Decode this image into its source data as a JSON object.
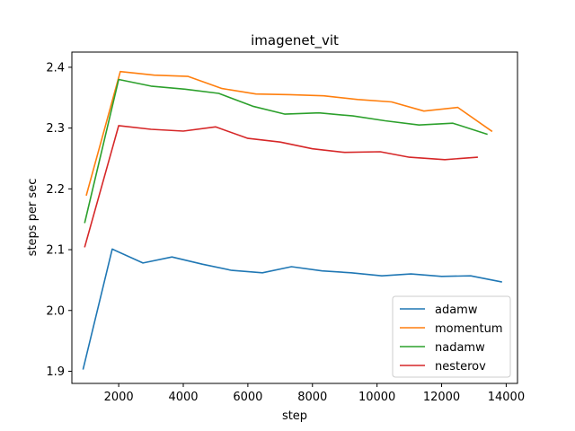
{
  "chart_data": {
    "type": "line",
    "title": "imagenet_vit",
    "xlabel": "step",
    "ylabel": "steps per sec",
    "xlim": [
      550,
      14350
    ],
    "ylim": [
      1.88,
      2.425
    ],
    "xticks": [
      2000,
      4000,
      6000,
      8000,
      10000,
      12000,
      14000
    ],
    "yticks": [
      1.9,
      2.0,
      2.1,
      2.2,
      2.3,
      2.4
    ],
    "xtick_labels": [
      "2000",
      "4000",
      "6000",
      "8000",
      "10000",
      "12000",
      "14000"
    ],
    "ytick_labels": [
      "1.9",
      "2.0",
      "2.1",
      "2.2",
      "2.3",
      "2.4"
    ],
    "grid": false,
    "legend_position": "lower-right",
    "series": [
      {
        "name": "adamw",
        "color": "#1f77b4",
        "x": [
          900,
          1800,
          2750,
          3650,
          4600,
          5500,
          6450,
          7350,
          8300,
          9200,
          10150,
          11050,
          12000,
          12900,
          13850
        ],
        "y": [
          1.904,
          2.101,
          2.078,
          2.088,
          2.076,
          2.066,
          2.062,
          2.072,
          2.065,
          2.062,
          2.057,
          2.06,
          2.056,
          2.057,
          2.047
        ]
      },
      {
        "name": "momentum",
        "color": "#ff7f0e",
        "x": [
          1000,
          2050,
          3100,
          4150,
          5200,
          6250,
          7300,
          8350,
          9400,
          10450,
          11450,
          12500,
          13550
        ],
        "y": [
          2.19,
          2.393,
          2.387,
          2.385,
          2.365,
          2.356,
          2.355,
          2.353,
          2.347,
          2.343,
          2.328,
          2.334,
          2.295
        ]
      },
      {
        "name": "nadamw",
        "color": "#2ca02c",
        "x": [
          950,
          2000,
          3000,
          4050,
          5100,
          6150,
          7150,
          8200,
          9250,
          10250,
          11300,
          12350,
          13400
        ],
        "y": [
          2.145,
          2.38,
          2.369,
          2.364,
          2.357,
          2.336,
          2.323,
          2.325,
          2.32,
          2.312,
          2.305,
          2.308,
          2.29
        ]
      },
      {
        "name": "nesterov",
        "color": "#d62728",
        "x": [
          950,
          2000,
          3000,
          4000,
          5000,
          6000,
          7000,
          8000,
          9000,
          10100,
          11000,
          12100,
          13100
        ],
        "y": [
          2.105,
          2.304,
          2.298,
          2.295,
          2.302,
          2.283,
          2.277,
          2.266,
          2.26,
          2.261,
          2.252,
          2.248,
          2.252
        ]
      }
    ]
  }
}
